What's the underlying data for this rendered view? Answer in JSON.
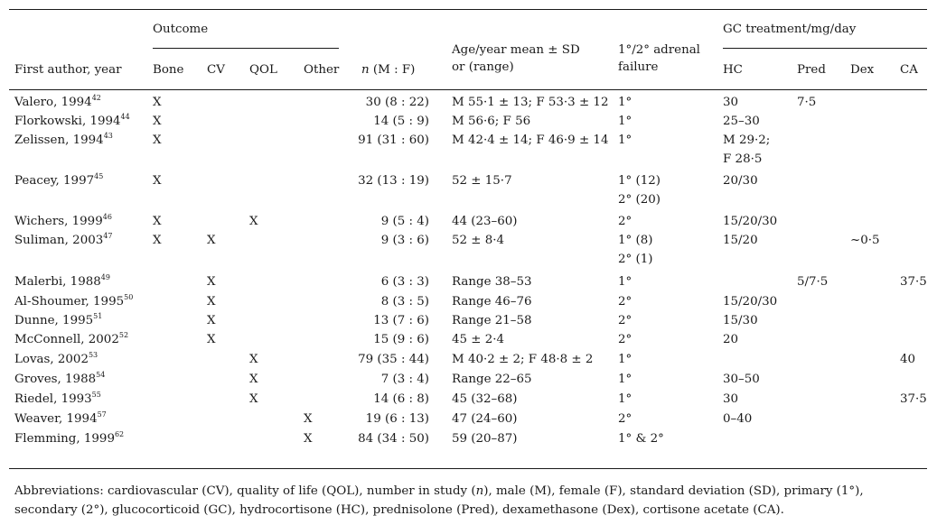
{
  "header": {
    "outcome": "Outcome",
    "gc_treatment": "GC treatment/mg/day",
    "first_author": "First author, year",
    "bone": "Bone",
    "cv": "CV",
    "qol": "QOL",
    "other": "Other",
    "n_label": "n",
    "n_suffix": " (M : F)",
    "age_line1": "Age/year mean ± SD",
    "age_line2": "or (range)",
    "adrenal_line1": "1°/2° adrenal",
    "adrenal_line2": "failure",
    "hc": "HC",
    "pred": "Pred",
    "dex": "Dex",
    "ca": "CA"
  },
  "rows": [
    {
      "author": "Valero, 1994",
      "ref": "42",
      "bone": "X",
      "cv": "",
      "qol": "",
      "other": "",
      "n": "30 (8 : 22)",
      "age": "M 55·1 ± 13; F 53·3 ± 12",
      "age2": "",
      "adrenal": "1°",
      "adrenal2": "",
      "hc": "30",
      "hc2": "",
      "pred": "7·5",
      "dex": "",
      "ca": ""
    },
    {
      "author": "Florkowski, 1994",
      "ref": "44",
      "bone": "X",
      "cv": "",
      "qol": "",
      "other": "",
      "n": "14 (5 : 9)",
      "age": "M 56·6; F 56",
      "age2": "",
      "adrenal": "1°",
      "adrenal2": "",
      "hc": "25–30",
      "hc2": "",
      "pred": "",
      "dex": "",
      "ca": ""
    },
    {
      "author": "Zelissen, 1994",
      "ref": "43",
      "bone": "X",
      "cv": "",
      "qol": "",
      "other": "",
      "n": "91 (31 : 60)",
      "age": "M 42·4 ± 14; F 46·9 ± 14",
      "age2": "",
      "adrenal": "1°",
      "adrenal2": "",
      "hc": "M 29·2;",
      "hc2": "F 28·5",
      "pred": "",
      "dex": "",
      "ca": ""
    },
    {
      "author": "Peacey, 1997",
      "ref": "45",
      "bone": "X",
      "cv": "",
      "qol": "",
      "other": "",
      "n": "32 (13 : 19)",
      "age": "52 ± 15·7",
      "age2": "",
      "adrenal": "1° (12)",
      "adrenal2": "2° (20)",
      "hc": "20/30",
      "hc2": "",
      "pred": "",
      "dex": "",
      "ca": ""
    },
    {
      "author": "Wichers, 1999",
      "ref": "46",
      "bone": "X",
      "cv": "",
      "qol": "X",
      "other": "",
      "n": "9 (5 : 4)",
      "age": "44 (23–60)",
      "age2": "",
      "adrenal": "2°",
      "adrenal2": "",
      "hc": "15/20/30",
      "hc2": "",
      "pred": "",
      "dex": "",
      "ca": ""
    },
    {
      "author": "Suliman, 2003",
      "ref": "47",
      "bone": "X",
      "cv": "X",
      "qol": "",
      "other": "",
      "n": "9 (3 : 6)",
      "age": "52 ± 8·4",
      "age2": "",
      "adrenal": "1° (8)",
      "adrenal2": "2° (1)",
      "hc": "15/20",
      "hc2": "",
      "pred": "",
      "dex": "~0·5",
      "ca": ""
    },
    {
      "author": "Malerbi, 1988",
      "ref": "49",
      "bone": "",
      "cv": "X",
      "qol": "",
      "other": "",
      "n": "6 (3 : 3)",
      "age": "Range 38–53",
      "age2": "",
      "adrenal": "1°",
      "adrenal2": "",
      "hc": "",
      "hc2": "",
      "pred": "5/7·5",
      "dex": "",
      "ca": "37·5"
    },
    {
      "author": "Al-Shoumer, 1995",
      "ref": "50",
      "bone": "",
      "cv": "X",
      "qol": "",
      "other": "",
      "n": "8 (3 : 5)",
      "age": "Range 46–76",
      "age2": "",
      "adrenal": "2°",
      "adrenal2": "",
      "hc": "15/20/30",
      "hc2": "",
      "pred": "",
      "dex": "",
      "ca": ""
    },
    {
      "author": "Dunne, 1995",
      "ref": "51",
      "bone": "",
      "cv": "X",
      "qol": "",
      "other": "",
      "n": "13 (7 : 6)",
      "age": "Range 21–58",
      "age2": "",
      "adrenal": "2°",
      "adrenal2": "",
      "hc": "15/30",
      "hc2": "",
      "pred": "",
      "dex": "",
      "ca": ""
    },
    {
      "author": "McConnell, 2002",
      "ref": "52",
      "bone": "",
      "cv": "X",
      "qol": "",
      "other": "",
      "n": "15 (9 : 6)",
      "age": "45 ± 2·4",
      "age2": "",
      "adrenal": "2°",
      "adrenal2": "",
      "hc": "20",
      "hc2": "",
      "pred": "",
      "dex": "",
      "ca": ""
    },
    {
      "author": "Lovas, 2002",
      "ref": "53",
      "bone": "",
      "cv": "",
      "qol": "X",
      "other": "",
      "n": "79 (35 : 44)",
      "age": "M 40·2 ± 2; F 48·8 ± 2",
      "age2": "",
      "adrenal": "1°",
      "adrenal2": "",
      "hc": "",
      "hc2": "",
      "pred": "",
      "dex": "",
      "ca": "40"
    },
    {
      "author": "Groves, 1988",
      "ref": "54",
      "bone": "",
      "cv": "",
      "qol": "X",
      "other": "",
      "n": "7 (3 : 4)",
      "age": "Range 22–65",
      "age2": "",
      "adrenal": "1°",
      "adrenal2": "",
      "hc": "30–50",
      "hc2": "",
      "pred": "",
      "dex": "",
      "ca": ""
    },
    {
      "author": "Riedel, 1993",
      "ref": "55",
      "bone": "",
      "cv": "",
      "qol": "X",
      "other": "",
      "n": "14 (6 : 8)",
      "age": "45 (32–68)",
      "age2": "",
      "adrenal": "1°",
      "adrenal2": "",
      "hc": "30",
      "hc2": "",
      "pred": "",
      "dex": "",
      "ca": "37·5"
    },
    {
      "author": "Weaver, 1994",
      "ref": "57",
      "bone": "",
      "cv": "",
      "qol": "",
      "other": "X",
      "n": "19 (6 : 13)",
      "age": "47 (24–60)",
      "age2": "",
      "adrenal": "2°",
      "adrenal2": "",
      "hc": "0–40",
      "hc2": "",
      "pred": "",
      "dex": "",
      "ca": ""
    },
    {
      "author": "Flemming, 1999",
      "ref": "62",
      "bone": "",
      "cv": "",
      "qol": "",
      "other": "X",
      "n": "84 (34 : 50)",
      "age": "59 (20–87)",
      "age2": "",
      "adrenal": "1° & 2°",
      "adrenal2": "",
      "hc": "",
      "hc2": "",
      "pred": "",
      "dex": "",
      "ca": ""
    }
  ],
  "footnote": {
    "prefix": "Abbreviations: cardiovascular (CV), quality of life (QOL), number in study (",
    "n": "n",
    "suffix": "), male (M), female (F), standard deviation (SD), primary (1°), secondary (2°), glucocorticoid (GC), hydrocortisone (HC), prednisolone (Pred), dexamethasone (Dex), cortisone acetate (CA)."
  }
}
